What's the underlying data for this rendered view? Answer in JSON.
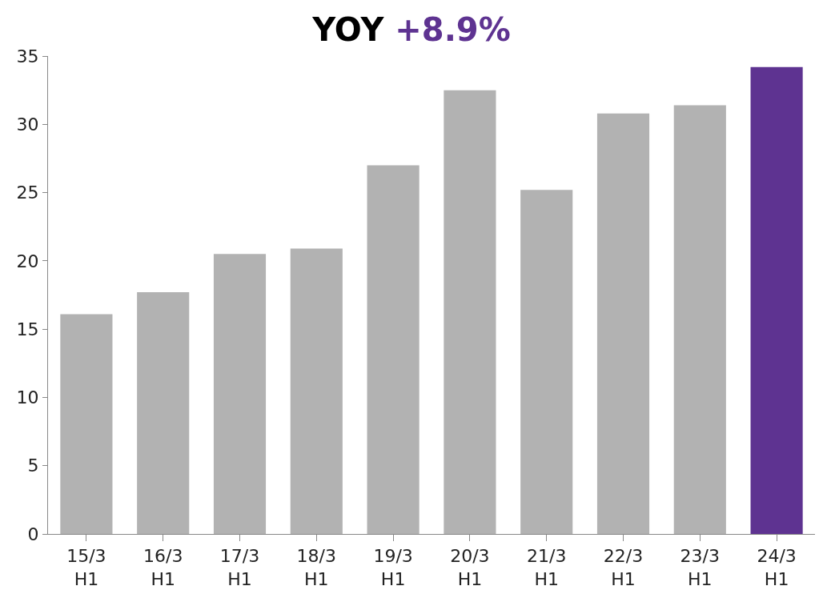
{
  "chart_data": {
    "type": "bar",
    "title": "YOY +8.9%",
    "categories": [
      "15/3 H1",
      "16/3 H1",
      "17/3 H1",
      "18/3 H1",
      "19/3 H1",
      "20/3 H1",
      "21/3 H1",
      "22/3 H1",
      "23/3 H1",
      "24/3 H1"
    ],
    "values": [
      16.1,
      17.7,
      20.5,
      20.9,
      27.0,
      32.5,
      25.2,
      30.8,
      31.4,
      34.2
    ],
    "colors": [
      "#b2b2b2",
      "#b2b2b2",
      "#b2b2b2",
      "#b2b2b2",
      "#b2b2b2",
      "#b2b2b2",
      "#b2b2b2",
      "#b2b2b2",
      "#b2b2b2",
      "#5e3391"
    ],
    "ylim": [
      0,
      35
    ],
    "yticks": [
      0,
      5,
      10,
      15,
      20,
      25,
      30,
      35
    ]
  }
}
